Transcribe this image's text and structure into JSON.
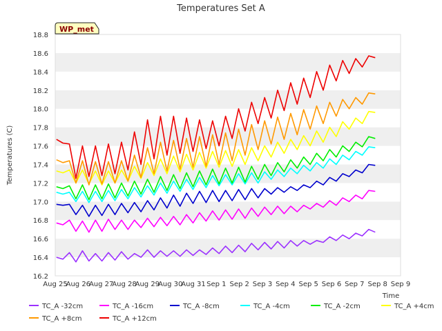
{
  "chart_data": {
    "type": "line",
    "title": "Temperatures Set A",
    "xlabel": "Time",
    "ylabel": "Temperatures (C)",
    "badge": "WP_met",
    "ylim": [
      16.2,
      18.8
    ],
    "yticks": [
      "16.2",
      "16.4",
      "16.6",
      "16.8",
      "17.0",
      "17.2",
      "17.4",
      "17.6",
      "17.8",
      "18.0",
      "18.2",
      "18.4",
      "18.6",
      "18.8"
    ],
    "xticks": [
      "Aug 25",
      "Aug 26",
      "Aug 27",
      "Aug 28",
      "Aug 29",
      "Aug 30",
      "Aug 31",
      "Sep 1",
      "Sep 2",
      "Sep 3",
      "Sep 4",
      "Sep 5",
      "Sep 6",
      "Sep 7",
      "Sep 8",
      "Sep 9"
    ],
    "x_unit": "days since Aug 25 (tick index)",
    "x_start_days": 0,
    "x_end_days": 14,
    "grid": "horizontal bands",
    "legend_position": "bottom",
    "series": [
      {
        "name": "TC_A -32cm",
        "color": "#9b30ff",
        "values": [
          16.4,
          16.38,
          16.45,
          16.35,
          16.47,
          16.36,
          16.44,
          16.36,
          16.45,
          16.37,
          16.46,
          16.38,
          16.44,
          16.4,
          16.48,
          16.4,
          16.47,
          16.41,
          16.47,
          16.41,
          16.48,
          16.42,
          16.48,
          16.43,
          16.5,
          16.44,
          16.52,
          16.45,
          16.53,
          16.46,
          16.55,
          16.48,
          16.56,
          16.49,
          16.57,
          16.5,
          16.58,
          16.52,
          16.58,
          16.54,
          16.58,
          16.56,
          16.62,
          16.58,
          16.64,
          16.6,
          16.66,
          16.63,
          16.7,
          16.67
        ]
      },
      {
        "name": "TC_A -16cm",
        "color": "#ff00ff",
        "values": [
          16.77,
          16.75,
          16.8,
          16.68,
          16.79,
          16.67,
          16.8,
          16.68,
          16.81,
          16.7,
          16.8,
          16.7,
          16.8,
          16.72,
          16.82,
          16.73,
          16.83,
          16.74,
          16.84,
          16.75,
          16.86,
          16.77,
          16.88,
          16.79,
          16.9,
          16.8,
          16.91,
          16.81,
          16.92,
          16.82,
          16.93,
          16.84,
          16.94,
          16.86,
          16.95,
          16.87,
          16.95,
          16.89,
          16.96,
          16.92,
          16.98,
          16.94,
          17.01,
          16.96,
          17.04,
          17.0,
          17.07,
          17.03,
          17.12,
          17.11
        ]
      },
      {
        "name": "TC_A -8cm",
        "color": "#0000cd",
        "values": [
          16.97,
          16.96,
          16.97,
          16.86,
          16.96,
          16.84,
          16.96,
          16.85,
          16.97,
          16.86,
          16.98,
          16.88,
          16.99,
          16.89,
          17.01,
          16.91,
          17.04,
          16.93,
          17.07,
          16.95,
          17.09,
          16.98,
          17.11,
          16.99,
          17.12,
          17.0,
          17.12,
          17.01,
          17.13,
          17.02,
          17.14,
          17.04,
          17.14,
          17.08,
          17.15,
          17.1,
          17.16,
          17.12,
          17.18,
          17.15,
          17.22,
          17.18,
          17.26,
          17.22,
          17.3,
          17.27,
          17.34,
          17.31,
          17.4,
          17.39
        ]
      },
      {
        "name": "TC_A -4cm",
        "color": "#00ffff",
        "values": [
          17.1,
          17.08,
          17.1,
          17.0,
          17.11,
          16.99,
          17.11,
          17.0,
          17.12,
          17.01,
          17.13,
          17.03,
          17.15,
          17.05,
          17.17,
          17.07,
          17.2,
          17.09,
          17.22,
          17.11,
          17.24,
          17.13,
          17.26,
          17.15,
          17.28,
          17.17,
          17.29,
          17.18,
          17.3,
          17.19,
          17.31,
          17.2,
          17.32,
          17.24,
          17.34,
          17.27,
          17.36,
          17.3,
          17.39,
          17.33,
          17.42,
          17.36,
          17.46,
          17.4,
          17.5,
          17.45,
          17.54,
          17.5,
          17.59,
          17.58
        ]
      },
      {
        "name": "TC_A -2cm",
        "color": "#00ee00",
        "values": [
          17.16,
          17.14,
          17.17,
          17.03,
          17.18,
          17.02,
          17.18,
          17.03,
          17.19,
          17.04,
          17.2,
          17.06,
          17.22,
          17.08,
          17.24,
          17.1,
          17.27,
          17.12,
          17.29,
          17.14,
          17.31,
          17.16,
          17.33,
          17.18,
          17.35,
          17.19,
          17.36,
          17.2,
          17.37,
          17.21,
          17.38,
          17.24,
          17.4,
          17.28,
          17.42,
          17.32,
          17.45,
          17.36,
          17.48,
          17.4,
          17.52,
          17.44,
          17.56,
          17.48,
          17.6,
          17.54,
          17.64,
          17.59,
          17.7,
          17.68
        ]
      },
      {
        "name": "TC_A +4cm",
        "color": "#ffff00",
        "values": [
          17.33,
          17.31,
          17.34,
          17.2,
          17.34,
          17.19,
          17.33,
          17.18,
          17.33,
          17.2,
          17.34,
          17.22,
          17.38,
          17.25,
          17.42,
          17.28,
          17.46,
          17.3,
          17.49,
          17.32,
          17.51,
          17.34,
          17.53,
          17.36,
          17.54,
          17.37,
          17.55,
          17.38,
          17.56,
          17.4,
          17.58,
          17.44,
          17.6,
          17.48,
          17.64,
          17.52,
          17.67,
          17.56,
          17.71,
          17.6,
          17.76,
          17.64,
          17.8,
          17.7,
          17.86,
          17.78,
          17.9,
          17.84,
          17.97,
          17.96
        ]
      },
      {
        "name": "TC_A +8cm",
        "color": "#ff9900",
        "values": [
          17.45,
          17.42,
          17.44,
          17.2,
          17.44,
          17.18,
          17.43,
          17.19,
          17.43,
          17.2,
          17.44,
          17.22,
          17.5,
          17.26,
          17.58,
          17.3,
          17.64,
          17.33,
          17.66,
          17.35,
          17.68,
          17.37,
          17.7,
          17.38,
          17.72,
          17.4,
          17.74,
          17.44,
          17.78,
          17.5,
          17.83,
          17.56,
          17.87,
          17.62,
          17.91,
          17.67,
          17.95,
          17.72,
          17.99,
          17.78,
          18.03,
          17.84,
          18.07,
          17.92,
          18.1,
          18.0,
          18.12,
          18.05,
          18.17,
          18.16
        ]
      },
      {
        "name": "TC_A +12cm",
        "color": "#ee0000",
        "values": [
          17.67,
          17.63,
          17.62,
          17.25,
          17.6,
          17.27,
          17.6,
          17.28,
          17.62,
          17.3,
          17.64,
          17.34,
          17.75,
          17.4,
          17.88,
          17.46,
          17.92,
          17.5,
          17.92,
          17.52,
          17.9,
          17.54,
          17.88,
          17.57,
          17.87,
          17.6,
          17.92,
          17.68,
          18.0,
          17.76,
          18.07,
          17.84,
          18.12,
          17.9,
          18.2,
          17.98,
          18.28,
          18.05,
          18.33,
          18.12,
          18.4,
          18.2,
          18.47,
          18.3,
          18.52,
          18.38,
          18.54,
          18.45,
          18.57,
          18.55
        ]
      }
    ]
  }
}
